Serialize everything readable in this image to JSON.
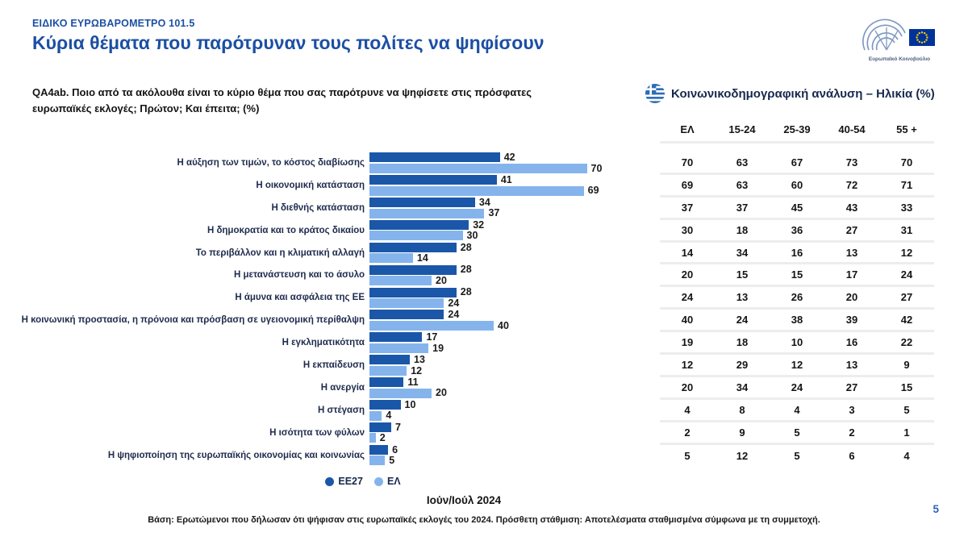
{
  "header": {
    "kicker": "ΕΙΔΙΚΟ ΕΥΡΩΒΑΡΟΜΕΤΡΟ 101.5",
    "title": "Κύρια θέματα που παρότρυναν τους πολίτες να ψηφίσουν",
    "logo_caption": "Ευρωπαϊκό Κοινοβούλιο"
  },
  "question": "QA4ab. Ποιο από τα ακόλουθα είναι το κύριο θέμα που σας παρότρυνε να ψηφίσετε στις πρόσφατες ευρωπαϊκές εκλογές; Πρώτον; Και έπειτα; (%)",
  "demo_panel": {
    "title": "Κοινωνικοδημογραφική ανάλυση – Ηλικία (%)",
    "columns": [
      "ΕΛ",
      "15-24",
      "25-39",
      "40-54",
      "55 +"
    ]
  },
  "chart_data": {
    "type": "bar",
    "orientation": "horizontal",
    "title": "Κύρια θέματα που παρότρυναν τους πολίτες να ψηφίσουν",
    "xlim": [
      0,
      80
    ],
    "grid": false,
    "legend_position": "bottom",
    "categories": [
      "Η αύξηση των τιμών, το κόστος διαβίωσης",
      "Η οικονομική κατάσταση",
      "Η διεθνής κατάσταση",
      "Η δημοκρατία και το κράτος δικαίου",
      "Το περιβάλλον και η κλιματική αλλαγή",
      "Η μετανάστευση και το άσυλο",
      "Η άμυνα και ασφάλεια της ΕΕ",
      "Η κοινωνική προστασία, η πρόνοια και πρόσβαση σε υγειονομική περίθαλψη",
      "Η εγκληματικότητα",
      "Η εκπαίδευση",
      "Η ανεργία",
      "Η στέγαση",
      "Η ισότητα των φύλων",
      "Η ψηφιοποίηση της ευρωπαϊκής οικονομίας και κοινωνίας"
    ],
    "series": [
      {
        "name": "ΕΕ27",
        "color": "#1b57a8",
        "values": [
          42,
          41,
          34,
          32,
          28,
          28,
          28,
          24,
          17,
          13,
          11,
          10,
          7,
          6
        ]
      },
      {
        "name": "ΕΛ",
        "color": "#85b4ec",
        "values": [
          70,
          69,
          37,
          30,
          14,
          20,
          24,
          40,
          19,
          12,
          20,
          4,
          2,
          5
        ]
      }
    ],
    "age_table": {
      "columns": [
        "ΕΛ",
        "15-24",
        "25-39",
        "40-54",
        "55 +"
      ],
      "rows": [
        [
          70,
          63,
          67,
          73,
          70
        ],
        [
          69,
          63,
          60,
          72,
          71
        ],
        [
          37,
          37,
          45,
          43,
          33
        ],
        [
          30,
          18,
          36,
          27,
          31
        ],
        [
          14,
          34,
          16,
          13,
          12
        ],
        [
          20,
          15,
          15,
          17,
          24
        ],
        [
          24,
          13,
          26,
          20,
          27
        ],
        [
          40,
          24,
          38,
          39,
          42
        ],
        [
          19,
          18,
          10,
          16,
          22
        ],
        [
          12,
          29,
          12,
          13,
          9
        ],
        [
          20,
          34,
          24,
          27,
          15
        ],
        [
          4,
          8,
          4,
          3,
          5
        ],
        [
          2,
          9,
          5,
          2,
          1
        ],
        [
          5,
          12,
          5,
          6,
          4
        ]
      ]
    }
  },
  "legend": [
    {
      "label": "ΕΕ27",
      "color": "#1b57a8"
    },
    {
      "label": "ΕΛ",
      "color": "#85b4ec"
    }
  ],
  "period": "Ιούν/Ιούλ 2024",
  "footnote": "Βάση: Ερωτώμενοι που δήλωσαν ότι ψήφισαν στις ευρωπαϊκές εκλογές του 2024. Πρόσθετη στάθμιση: Αποτελέσματα σταθμισμένα σύμφωνα με τη συμμετοχή.",
  "page_number": "5",
  "colors": {
    "accent_blue": "#1c4fa4",
    "bar_dark": "#1b57a8",
    "bar_light": "#85b4ec",
    "eu_flag_blue": "#003399",
    "eu_star_yellow": "#ffcc00",
    "greek_flag_blue": "#2e6db8",
    "table_separator": "#ededed"
  }
}
